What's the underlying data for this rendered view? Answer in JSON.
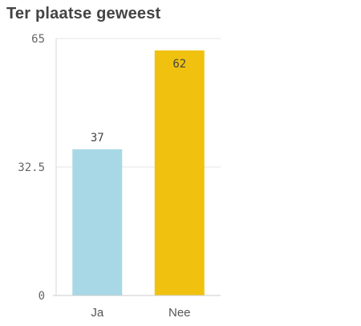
{
  "chart_data": {
    "type": "bar",
    "title": "Ter plaatse geweest",
    "categories": [
      "Ja",
      "Nee"
    ],
    "values": [
      37,
      62
    ],
    "colors": [
      "#a8d8e5",
      "#f0c20f"
    ],
    "yticks": [
      "0",
      "32.5",
      "65"
    ],
    "ylim": [
      0,
      65
    ],
    "grid": true,
    "xlabel": "",
    "ylabel": ""
  }
}
